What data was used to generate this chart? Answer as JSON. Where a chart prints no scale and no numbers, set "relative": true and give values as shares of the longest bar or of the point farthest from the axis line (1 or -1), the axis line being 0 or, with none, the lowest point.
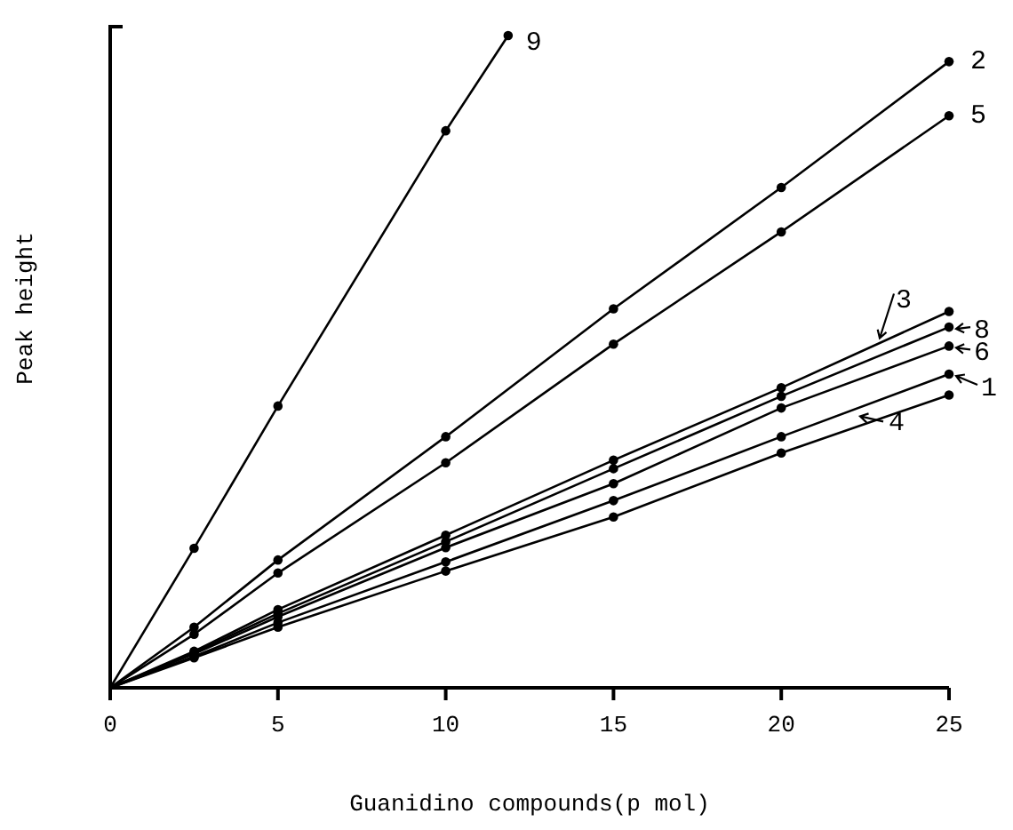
{
  "chart_data": {
    "type": "line",
    "xlabel": "Guanidino compounds(p mol)",
    "ylabel": "Peak height",
    "relative": true,
    "xlim": [
      0,
      25
    ],
    "xticks": [
      0,
      5,
      10,
      15,
      20,
      25
    ],
    "marker": "circle",
    "line_style": "solid",
    "grid": false,
    "legend": "right",
    "x": [
      0,
      2.5,
      5,
      10,
      15,
      20,
      25
    ],
    "series": [
      {
        "name": "9",
        "color": "#000000",
        "x": [
          0,
          2.5,
          5,
          10,
          11.86
        ],
        "values": [
          0,
          0.214,
          0.432,
          0.854,
          1
        ]
      },
      {
        "name": "2",
        "color": "#000000",
        "values": [
          0,
          0.093,
          0.196,
          0.385,
          0.581,
          0.767,
          0.96
        ]
      },
      {
        "name": "5",
        "color": "#000000",
        "values": [
          0,
          0.082,
          0.176,
          0.345,
          0.527,
          0.699,
          0.877
        ]
      },
      {
        "name": "3",
        "color": "#000000",
        "values": [
          0,
          0.056,
          0.12,
          0.234,
          0.349,
          0.46,
          0.577
        ]
      },
      {
        "name": "8",
        "color": "#000000",
        "values": [
          0,
          0.054,
          0.114,
          0.224,
          0.336,
          0.447,
          0.553
        ]
      },
      {
        "name": "6",
        "color": "#000000",
        "values": [
          0,
          0.052,
          0.109,
          0.215,
          0.313,
          0.429,
          0.524
        ]
      },
      {
        "name": "1",
        "color": "#000000",
        "values": [
          0,
          0.048,
          0.1,
          0.193,
          0.287,
          0.385,
          0.481
        ]
      },
      {
        "name": "4",
        "color": "#000000",
        "values": [
          0,
          0.046,
          0.093,
          0.179,
          0.262,
          0.36,
          0.449
        ]
      }
    ]
  }
}
